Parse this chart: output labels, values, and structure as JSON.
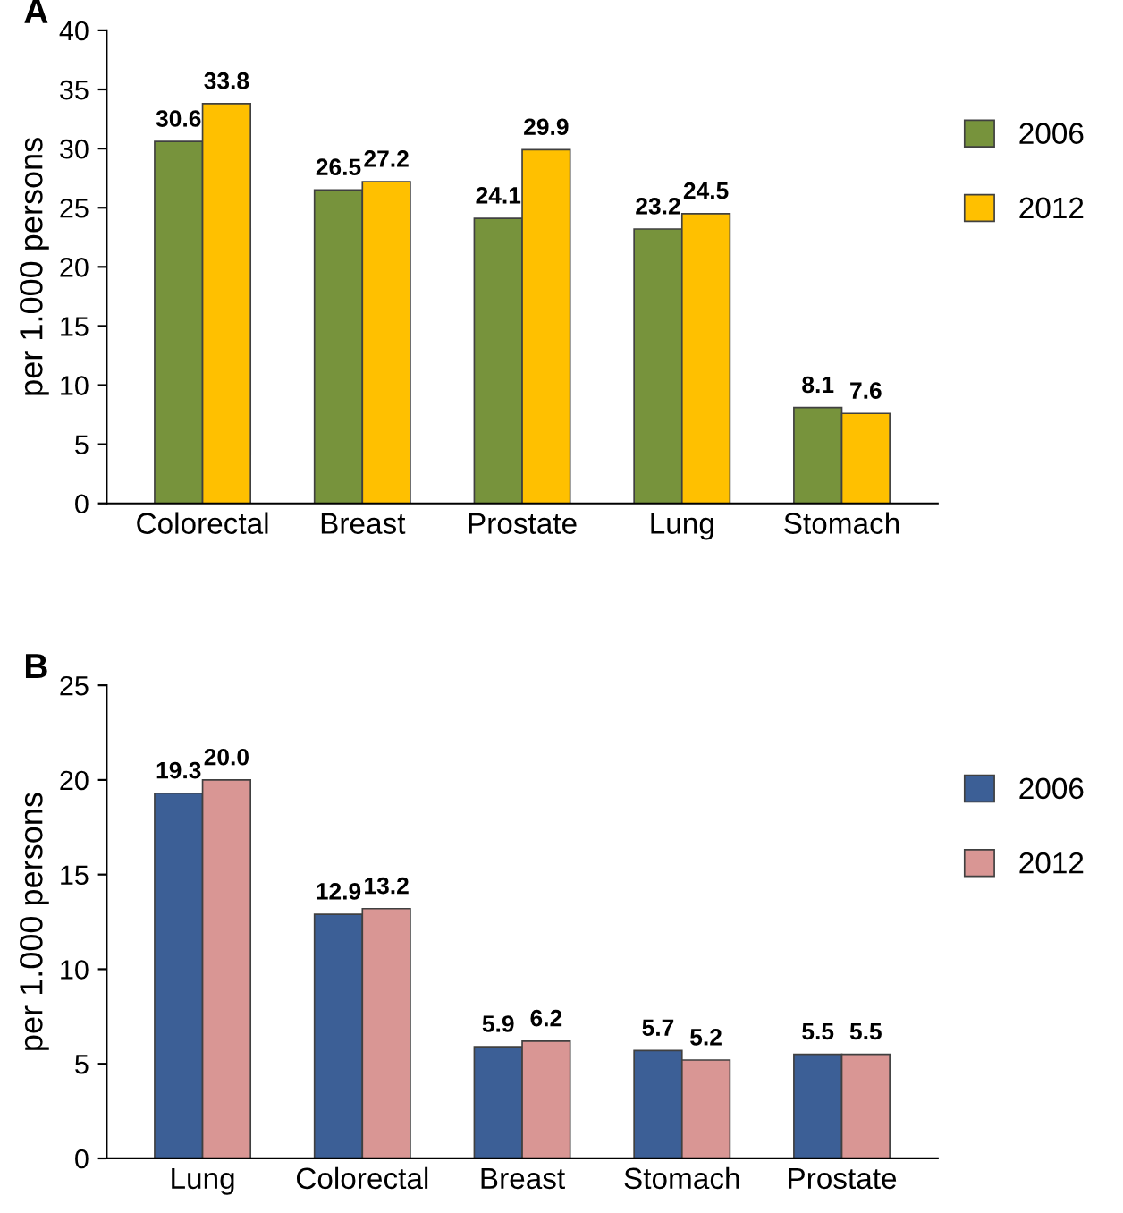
{
  "chart_data": [
    {
      "type": "bar",
      "title": "A",
      "ylabel": "per 1.000 persons",
      "categories": [
        "Colorectal",
        "Breast",
        "Prostate",
        "Lung",
        "Stomach"
      ],
      "series": [
        {
          "name": "2006",
          "color": "#77933c",
          "values": [
            30.6,
            26.5,
            24.1,
            23.2,
            8.1
          ],
          "value_labels": [
            "30.6",
            "26.5",
            "24.1",
            "23.2",
            "8.1"
          ]
        },
        {
          "name": "2012",
          "color": "#ffc000",
          "values": [
            33.8,
            27.2,
            29.9,
            24.5,
            7.6
          ],
          "value_labels": [
            "33.8",
            "27.2",
            "29.9",
            "24.5",
            "7.6"
          ]
        }
      ],
      "ylim": [
        0,
        40
      ],
      "yticks": [
        0,
        5,
        10,
        15,
        20,
        25,
        30,
        35,
        40
      ],
      "grid": false,
      "legend": "right"
    },
    {
      "type": "bar",
      "title": "B",
      "ylabel": "per 1.000 persons",
      "categories": [
        "Lung",
        "Colorectal",
        "Breast",
        "Stomach",
        "Prostate"
      ],
      "series": [
        {
          "name": "2006",
          "color": "#3c5f96",
          "values": [
            19.3,
            12.9,
            5.9,
            5.7,
            5.5
          ],
          "value_labels": [
            "19.3",
            "12.9",
            "5.9",
            "5.7",
            "5.5"
          ]
        },
        {
          "name": "2012",
          "color": "#d99694",
          "values": [
            20.0,
            13.2,
            6.2,
            5.2,
            5.5
          ],
          "value_labels": [
            "20.0",
            "13.2",
            "6.2",
            "5.2",
            "5.5"
          ]
        }
      ],
      "ylim": [
        0,
        25
      ],
      "yticks": [
        0,
        5,
        10,
        15,
        20,
        25
      ],
      "grid": false,
      "legend": "right"
    }
  ]
}
